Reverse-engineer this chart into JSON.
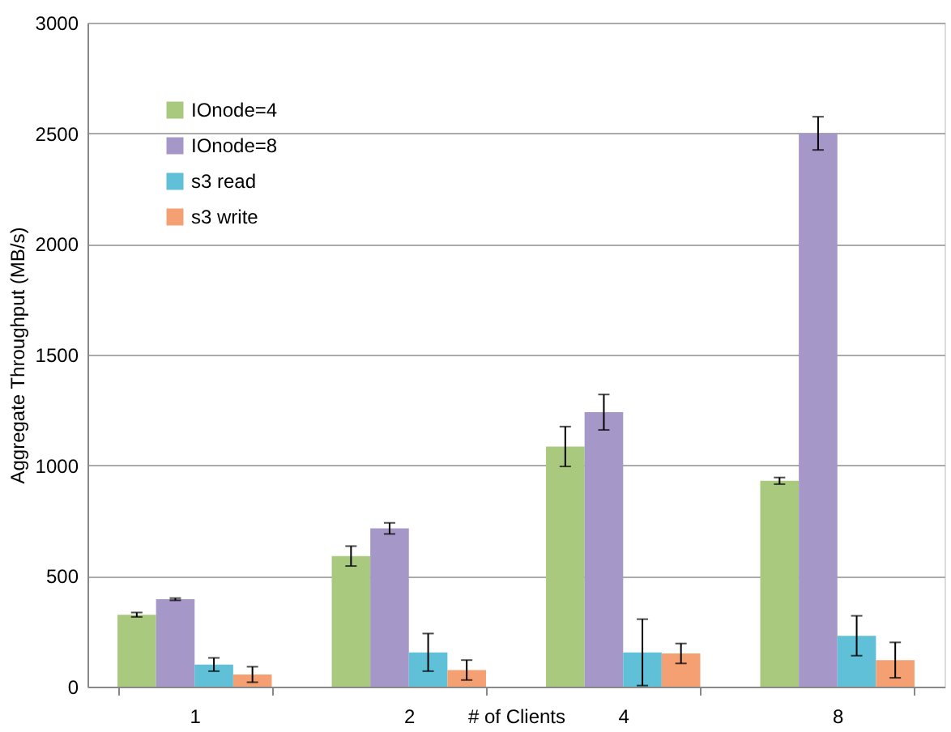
{
  "chart_data": {
    "type": "bar",
    "xlabel": "# of Clients",
    "ylabel": "Aggregate Throughput (MB/s)",
    "categories": [
      "1",
      "2",
      "4",
      "8"
    ],
    "series": [
      {
        "name": "IOnode=4",
        "color": "#a9c97f",
        "values": [
          325,
          590,
          1085,
          930
        ],
        "errors": [
          10,
          45,
          90,
          15
        ]
      },
      {
        "name": "IOnode=8",
        "color": "#a597c8",
        "values": [
          395,
          715,
          1240,
          2500
        ],
        "errors": [
          5,
          25,
          80,
          75
        ]
      },
      {
        "name": "s3 read",
        "color": "#5fc0d8",
        "values": [
          100,
          155,
          155,
          230
        ],
        "errors": [
          30,
          85,
          150,
          90
        ]
      },
      {
        "name": "s3 write",
        "color": "#f5a072",
        "values": [
          55,
          75,
          150,
          120
        ],
        "errors": [
          35,
          45,
          45,
          80
        ]
      }
    ],
    "ylim": [
      0,
      3000
    ],
    "yticks": [
      0,
      500,
      1000,
      1500,
      2000,
      2500,
      3000
    ],
    "grid": "y",
    "legend": "top left"
  }
}
